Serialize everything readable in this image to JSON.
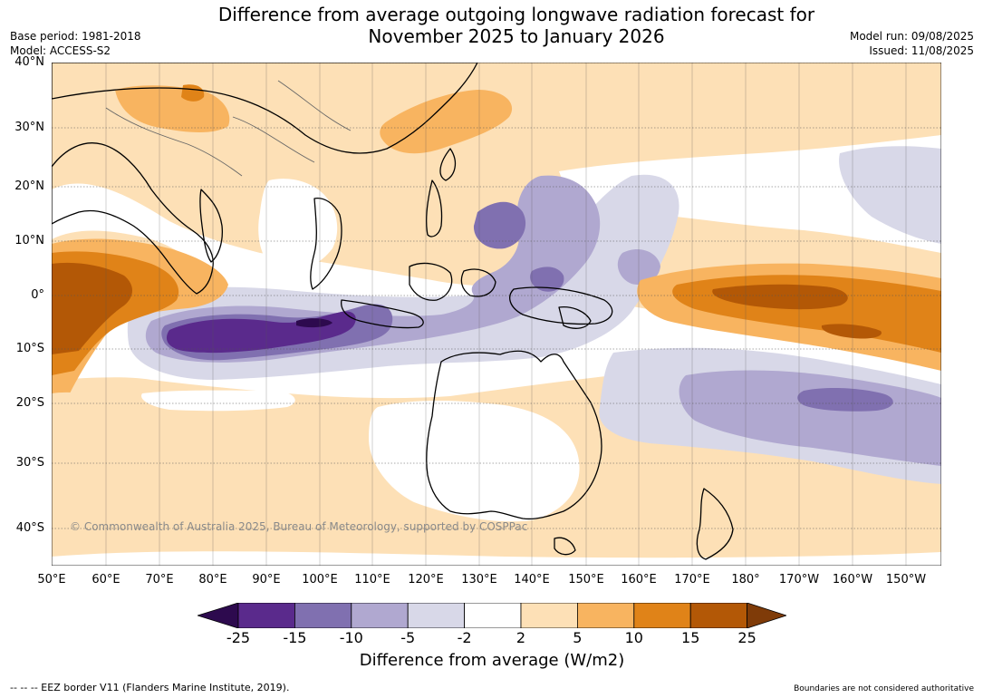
{
  "title_line1": "Difference from average outgoing longwave radiation forecast for",
  "title_line2": "November 2025 to January 2026",
  "base_period": "Base period: 1981-2018",
  "model": "Model: ACCESS-S2",
  "model_run": "Model run: 09/08/2025",
  "issued": "Issued: 11/08/2025",
  "copyright": "© Commonwealth of Australia 2025, Bureau of Meteorology, supported by COSPPac",
  "footer_left": "-- -- -- EEZ border V11 (Flanders Marine Institute, 2019).",
  "footer_right": "Boundaries are not considered authoritative",
  "lat_labels": [
    "40°N",
    "30°N",
    "20°N",
    "10°N",
    "0°",
    "10°S",
    "20°S",
    "30°S",
    "40°S"
  ],
  "lon_labels": [
    "50°E",
    "60°E",
    "70°E",
    "80°E",
    "90°E",
    "100°E",
    "110°E",
    "120°E",
    "130°E",
    "140°E",
    "150°E",
    "160°E",
    "170°E",
    "180°",
    "170°W",
    "160°W",
    "150°W"
  ],
  "colorbar": {
    "label": "Difference from average (W/m2)",
    "ticks": [
      "-25",
      "-15",
      "-10",
      "-5",
      "-2",
      "2",
      "5",
      "10",
      "15",
      "25"
    ],
    "colors": {
      "neg_extreme": "#2d0a4e",
      "neg25": "#5a2a8c",
      "neg15": "#8070b0",
      "neg10": "#b0a8d0",
      "neg5": "#d8d8e8",
      "neutral": "#ffffff",
      "pos2": "#fde0b6",
      "pos5": "#f8b460",
      "pos10": "#e08318",
      "pos15": "#b35806",
      "pos_extreme": "#7f3b08"
    }
  },
  "map": {
    "lat_range": [
      "40°N",
      "45°S"
    ],
    "lon_range": [
      "50°E",
      "145°W"
    ],
    "grid": true
  }
}
